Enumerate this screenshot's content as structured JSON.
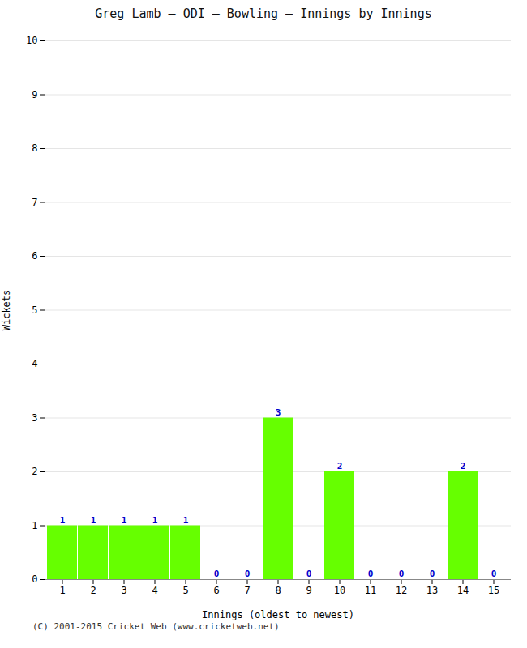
{
  "chart_data": {
    "type": "bar",
    "title": "Greg Lamb – ODI – Bowling – Innings by Innings",
    "xlabel": "Innings (oldest to newest)",
    "ylabel": "Wickets",
    "categories": [
      "1",
      "2",
      "3",
      "4",
      "5",
      "6",
      "7",
      "8",
      "9",
      "10",
      "11",
      "12",
      "13",
      "14",
      "15"
    ],
    "values": [
      1,
      1,
      1,
      1,
      1,
      0,
      0,
      3,
      0,
      2,
      0,
      0,
      0,
      2,
      0
    ],
    "color": "#66ff00",
    "ylim": [
      0,
      10
    ],
    "yticks": [
      0,
      1,
      2,
      3,
      4,
      5,
      6,
      7,
      8,
      9,
      10
    ],
    "grid": true,
    "data_labels": true,
    "annotations": [
      "(C) 2001-2015 Cricket Web (www.cricketweb.net)"
    ]
  }
}
